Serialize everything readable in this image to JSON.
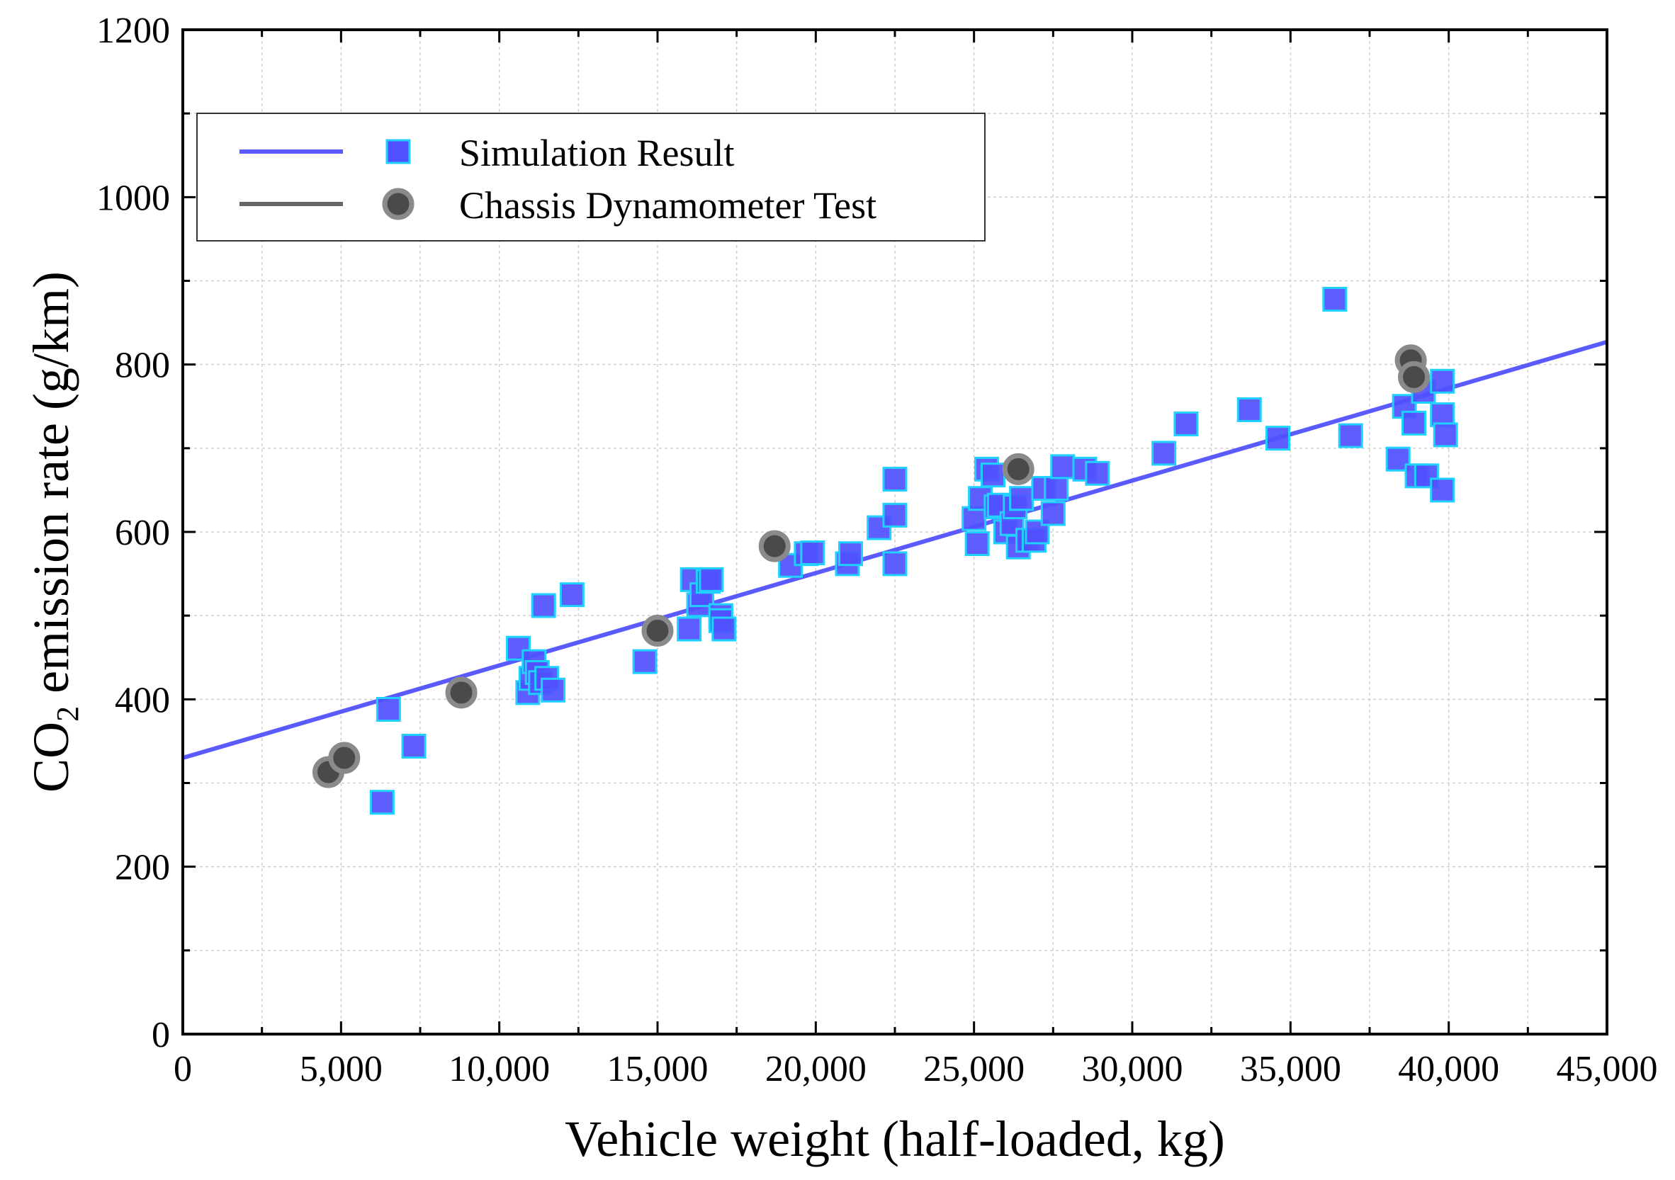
{
  "chart_data": {
    "type": "scatter",
    "xlabel": "Vehicle weight (half-loaded, kg)",
    "ylabel_parts": [
      "CO",
      "2",
      " emission rate (g/km)"
    ],
    "xlim": [
      0,
      45000
    ],
    "ylim": [
      0,
      1200
    ],
    "x_ticks": [
      0,
      5000,
      10000,
      15000,
      20000,
      25000,
      30000,
      35000,
      40000,
      45000
    ],
    "x_tick_labels": [
      "0",
      "5,000",
      "10,000",
      "15,000",
      "20,000",
      "25,000",
      "30,000",
      "35,000",
      "40,000",
      "45,000"
    ],
    "y_ticks": [
      0,
      200,
      400,
      600,
      800,
      1000,
      1200
    ],
    "y_tick_labels": [
      "0",
      "200",
      "400",
      "600",
      "800",
      "1000",
      "1200"
    ],
    "grid": true,
    "legend_position": "top-left",
    "series": [
      {
        "name": "Simulation Result",
        "marker": "square",
        "color": "#5050ff",
        "edge_color": "#20d0ff",
        "points": [
          [
            6300,
            277
          ],
          [
            6500,
            388
          ],
          [
            7300,
            344
          ],
          [
            10600,
            461
          ],
          [
            10900,
            408
          ],
          [
            11000,
            425
          ],
          [
            11100,
            445
          ],
          [
            11200,
            432
          ],
          [
            11300,
            420
          ],
          [
            11400,
            512
          ],
          [
            11500,
            425
          ],
          [
            11700,
            411
          ],
          [
            12300,
            525
          ],
          [
            14600,
            445
          ],
          [
            16000,
            484
          ],
          [
            16100,
            543
          ],
          [
            16300,
            513
          ],
          [
            16400,
            525
          ],
          [
            16600,
            541
          ],
          [
            16700,
            543
          ],
          [
            17000,
            500
          ],
          [
            17000,
            494
          ],
          [
            17100,
            484
          ],
          [
            19200,
            560
          ],
          [
            19700,
            574
          ],
          [
            19900,
            575
          ],
          [
            21000,
            562
          ],
          [
            21100,
            574
          ],
          [
            22000,
            605
          ],
          [
            22500,
            620
          ],
          [
            22500,
            562
          ],
          [
            22500,
            663
          ],
          [
            25000,
            616
          ],
          [
            25100,
            586
          ],
          [
            25200,
            640
          ],
          [
            25400,
            675
          ],
          [
            25600,
            668
          ],
          [
            25700,
            630
          ],
          [
            25800,
            632
          ],
          [
            26000,
            600
          ],
          [
            26200,
            610
          ],
          [
            26300,
            630
          ],
          [
            26400,
            582
          ],
          [
            26500,
            640
          ],
          [
            26700,
            590
          ],
          [
            26900,
            590
          ],
          [
            27000,
            600
          ],
          [
            27200,
            652
          ],
          [
            27500,
            622
          ],
          [
            27600,
            652
          ],
          [
            27800,
            678
          ],
          [
            28500,
            675
          ],
          [
            28900,
            670
          ],
          [
            31000,
            694
          ],
          [
            31700,
            729
          ],
          [
            33700,
            746
          ],
          [
            34600,
            712
          ],
          [
            36400,
            878
          ],
          [
            36900,
            715
          ],
          [
            38400,
            687
          ],
          [
            38600,
            750
          ],
          [
            38900,
            730
          ],
          [
            39000,
            667
          ],
          [
            39200,
            768
          ],
          [
            39300,
            667
          ],
          [
            39800,
            780
          ],
          [
            39800,
            650
          ],
          [
            39800,
            740
          ],
          [
            39900,
            716
          ]
        ],
        "fit": {
          "x": [
            0,
            45000
          ],
          "y": [
            330,
            827
          ]
        }
      },
      {
        "name": "Chassis Dynamometer Test",
        "marker": "circle",
        "color": "#4a4a4a",
        "edge_color": "#8a8a8a",
        "points": [
          [
            4600,
            313
          ],
          [
            5100,
            330
          ],
          [
            8800,
            408
          ],
          [
            15000,
            482
          ],
          [
            18700,
            583
          ],
          [
            26400,
            675
          ],
          [
            38800,
            805
          ],
          [
            38900,
            785
          ]
        ],
        "fit": {
          "x": [
            0,
            45000
          ],
          "y": [
            330,
            827
          ]
        }
      }
    ]
  }
}
